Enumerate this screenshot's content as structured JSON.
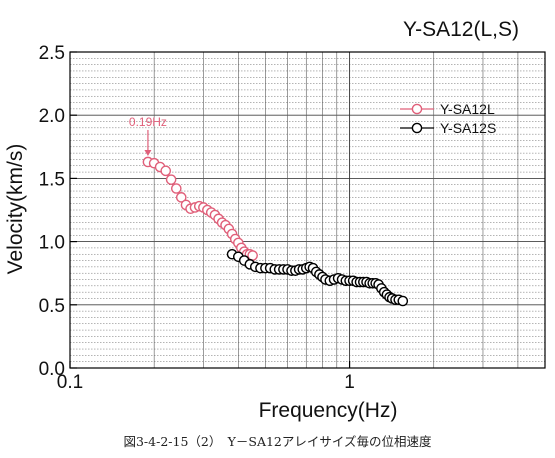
{
  "chart_data": {
    "type": "scatter",
    "title": "Y-SA12(L,S)",
    "xlabel": "Frequency(Hz)",
    "ylabel": "Velocity(km/s)",
    "xscale": "log",
    "xlim": [
      0.1,
      5
    ],
    "ylim": [
      0,
      2.5
    ],
    "x_ticks": [
      0.1,
      1
    ],
    "x_tick_labels": [
      "0.1",
      "1"
    ],
    "y_ticks": [
      0,
      0.5,
      1.0,
      1.5,
      2.0,
      2.5
    ],
    "y_tick_labels": [
      "0.0",
      "0.5",
      "1.0",
      "1.5",
      "2.0",
      "2.5"
    ],
    "grid": true,
    "legend_position": "top-right",
    "annotation": {
      "text": "0.19Hz",
      "x": 0.19,
      "y": 1.63,
      "color": "#e0607a"
    },
    "series": [
      {
        "name": "Y-SA12L",
        "color": "#e0607a",
        "points": [
          [
            0.19,
            1.63
          ],
          [
            0.2,
            1.62
          ],
          [
            0.21,
            1.59
          ],
          [
            0.22,
            1.56
          ],
          [
            0.23,
            1.49
          ],
          [
            0.24,
            1.42
          ],
          [
            0.25,
            1.35
          ],
          [
            0.26,
            1.29
          ],
          [
            0.27,
            1.26
          ],
          [
            0.28,
            1.27
          ],
          [
            0.29,
            1.28
          ],
          [
            0.3,
            1.27
          ],
          [
            0.31,
            1.25
          ],
          [
            0.32,
            1.23
          ],
          [
            0.33,
            1.21
          ],
          [
            0.34,
            1.18
          ],
          [
            0.35,
            1.15
          ],
          [
            0.36,
            1.13
          ],
          [
            0.37,
            1.1
          ],
          [
            0.38,
            1.06
          ],
          [
            0.39,
            1.02
          ],
          [
            0.4,
            0.99
          ],
          [
            0.41,
            0.95
          ],
          [
            0.42,
            0.92
          ],
          [
            0.43,
            0.9
          ],
          [
            0.44,
            0.9
          ],
          [
            0.45,
            0.89
          ]
        ]
      },
      {
        "name": "Y-SA12S",
        "color": "#000000",
        "points": [
          [
            0.38,
            0.9
          ],
          [
            0.4,
            0.88
          ],
          [
            0.42,
            0.85
          ],
          [
            0.44,
            0.82
          ],
          [
            0.46,
            0.8
          ],
          [
            0.48,
            0.79
          ],
          [
            0.5,
            0.79
          ],
          [
            0.52,
            0.79
          ],
          [
            0.54,
            0.78
          ],
          [
            0.56,
            0.78
          ],
          [
            0.58,
            0.78
          ],
          [
            0.6,
            0.78
          ],
          [
            0.62,
            0.77
          ],
          [
            0.64,
            0.77
          ],
          [
            0.66,
            0.78
          ],
          [
            0.68,
            0.78
          ],
          [
            0.7,
            0.79
          ],
          [
            0.72,
            0.8
          ],
          [
            0.74,
            0.79
          ],
          [
            0.76,
            0.76
          ],
          [
            0.78,
            0.74
          ],
          [
            0.8,
            0.72
          ],
          [
            0.82,
            0.7
          ],
          [
            0.85,
            0.69
          ],
          [
            0.88,
            0.7
          ],
          [
            0.91,
            0.71
          ],
          [
            0.94,
            0.7
          ],
          [
            0.97,
            0.69
          ],
          [
            1.0,
            0.69
          ],
          [
            1.03,
            0.69
          ],
          [
            1.06,
            0.68
          ],
          [
            1.09,
            0.68
          ],
          [
            1.12,
            0.68
          ],
          [
            1.15,
            0.68
          ],
          [
            1.18,
            0.67
          ],
          [
            1.21,
            0.67
          ],
          [
            1.24,
            0.67
          ],
          [
            1.27,
            0.66
          ],
          [
            1.3,
            0.63
          ],
          [
            1.33,
            0.6
          ],
          [
            1.36,
            0.58
          ],
          [
            1.39,
            0.56
          ],
          [
            1.42,
            0.55
          ],
          [
            1.46,
            0.54
          ],
          [
            1.5,
            0.54
          ],
          [
            1.55,
            0.53
          ]
        ]
      }
    ]
  },
  "caption": "図3-4-2-15（2）　Y－SA12アレイサイズ毎の位相速度"
}
